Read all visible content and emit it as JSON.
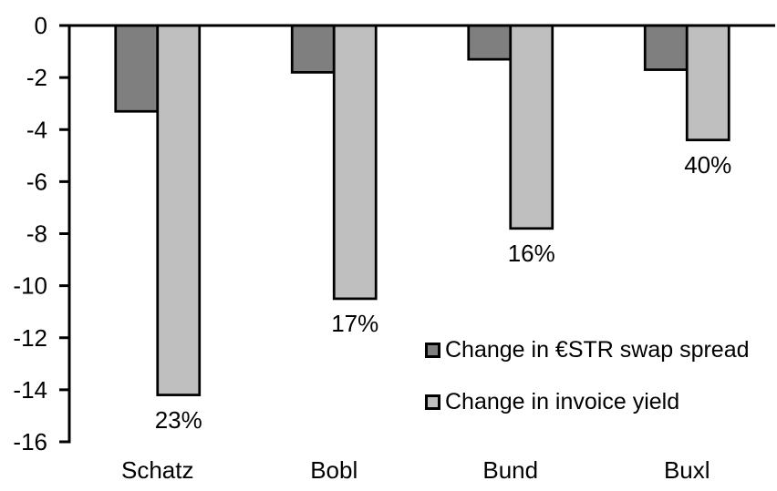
{
  "chart_data": {
    "type": "bar",
    "categories": [
      "Schatz",
      "Bobl",
      "Bund",
      "Buxl"
    ],
    "series": [
      {
        "name": "Change in €STR swap spread",
        "color": "#7f7f7f",
        "values": [
          -3.3,
          -1.8,
          -1.3,
          -1.7
        ]
      },
      {
        "name": "Change in invoice yield",
        "color": "#bfbfbf",
        "values": [
          -14.2,
          -10.5,
          -7.8,
          -4.4
        ],
        "point_labels": [
          "23%",
          "17%",
          "16%",
          "40%"
        ]
      }
    ],
    "title": "",
    "xlabel": "",
    "ylabel": "",
    "ylim": [
      -16,
      0
    ],
    "yticks": [
      0,
      -2,
      -4,
      -6,
      -8,
      -10,
      -12,
      -14,
      -16
    ],
    "ytick_labels": [
      "0",
      "-2",
      "-4",
      "-6",
      "-8",
      "-10",
      "-12",
      "-14",
      "-16"
    ],
    "grid": false,
    "legend_position": "inside-right",
    "colors": {
      "axis": "#000000",
      "bar_border": "#000000",
      "text": "#000000",
      "background": "#ffffff"
    }
  }
}
